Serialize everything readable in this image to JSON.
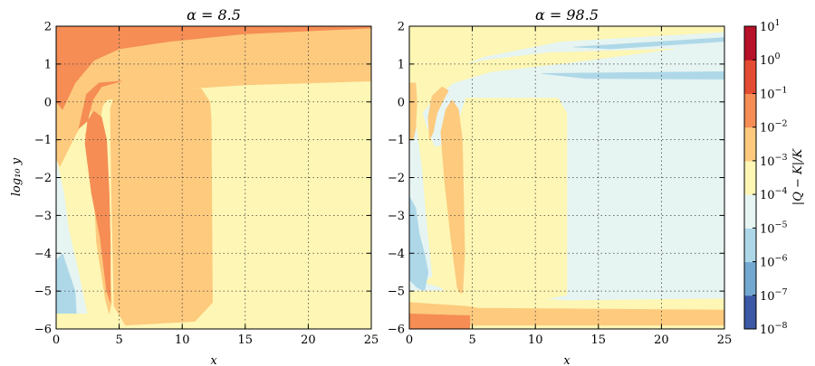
{
  "chart_data": [
    {
      "type": "heatmap",
      "title": "α = 8.5",
      "xlabel": "x",
      "ylabel": "log₁₀ y",
      "xlim": [
        0,
        25
      ],
      "ylim": [
        -6,
        2
      ],
      "xticks": [
        "0",
        "5",
        "10",
        "15",
        "20",
        "25"
      ],
      "yticks": [
        "−6",
        "−5",
        "−4",
        "−3",
        "−2",
        "−1",
        "0",
        "1",
        "2"
      ],
      "grid": true,
      "background_level": "1e-4 to 1e-3",
      "regions": [
        {
          "level": "1e-3 to 1e-2",
          "polygon": [
            [
              0.0,
              2.0
            ],
            [
              25.0,
              2.0
            ],
            [
              25.0,
              0.55
            ],
            [
              15.0,
              0.45
            ],
            [
              8.0,
              0.3
            ],
            [
              4.0,
              0.05
            ],
            [
              2.5,
              -0.3
            ],
            [
              1.5,
              -0.9
            ],
            [
              0.3,
              -1.7
            ],
            [
              0.0,
              -1.5
            ]
          ]
        },
        {
          "level": "1e-2 to 1e-1",
          "polygon": [
            [
              0.0,
              2.0
            ],
            [
              25.0,
              2.0
            ],
            [
              25.0,
              1.95
            ],
            [
              15.0,
              1.8
            ],
            [
              9.0,
              1.6
            ],
            [
              5.0,
              1.4
            ],
            [
              3.0,
              1.1
            ],
            [
              1.5,
              0.5
            ],
            [
              0.5,
              -0.2
            ],
            [
              0.0,
              0.0
            ]
          ]
        },
        {
          "level": "1e-3 to 1e-2",
          "polygon": [
            [
              2.3,
              -0.9
            ],
            [
              2.8,
              -0.25
            ],
            [
              3.6,
              0.25
            ],
            [
              4.3,
              0.5
            ],
            [
              5.2,
              0.6
            ],
            [
              4.5,
              0.3
            ],
            [
              3.7,
              -0.1
            ],
            [
              3.2,
              -0.9
            ],
            [
              3.0,
              -2.2
            ],
            [
              3.2,
              -3.7
            ],
            [
              3.9,
              -5.2
            ],
            [
              4.2,
              -5.6
            ],
            [
              4.4,
              -5.3
            ],
            [
              4.2,
              -3.9
            ],
            [
              4.0,
              -2.2
            ],
            [
              3.4,
              -1.3
            ]
          ]
        },
        {
          "level": "1e-3 to 1e-2",
          "polygon": [
            [
              4.3,
              -0.2
            ],
            [
              4.7,
              0.3
            ],
            [
              5.3,
              0.35
            ],
            [
              11.5,
              0.35
            ],
            [
              12.2,
              0.0
            ],
            [
              12.3,
              -0.5
            ],
            [
              12.4,
              -5.3
            ],
            [
              11.0,
              -5.8
            ],
            [
              5.5,
              -5.9
            ],
            [
              4.6,
              -5.4
            ],
            [
              4.4,
              -2.5
            ]
          ]
        },
        {
          "level": "1e-2 to 1e-1",
          "polygon": [
            [
              2.3,
              -1.1
            ],
            [
              2.5,
              -0.5
            ],
            [
              3.0,
              -0.25
            ],
            [
              3.6,
              -0.4
            ],
            [
              4.0,
              -1.0
            ],
            [
              4.2,
              -2.4
            ],
            [
              4.3,
              -3.8
            ],
            [
              4.3,
              -5.3
            ],
            [
              4.0,
              -5.0
            ],
            [
              3.5,
              -3.6
            ],
            [
              2.8,
              -2.4
            ]
          ]
        },
        {
          "level": "1e-2 to 1e-1",
          "polygon": [
            [
              1.8,
              -0.7
            ],
            [
              2.4,
              0.2
            ],
            [
              3.4,
              0.5
            ],
            [
              5.2,
              0.55
            ],
            [
              3.6,
              0.4
            ],
            [
              2.9,
              0.05
            ],
            [
              2.5,
              -0.5
            ]
          ]
        },
        {
          "level": "1e-5 to 1e-4",
          "polygon": [
            [
              0.0,
              -1.5
            ],
            [
              0.6,
              -2.4
            ],
            [
              1.0,
              -3.4
            ],
            [
              1.7,
              -4.4
            ],
            [
              2.2,
              -5.2
            ],
            [
              2.6,
              -5.8
            ],
            [
              3.6,
              -6.0
            ],
            [
              0.0,
              -6.0
            ]
          ]
        },
        {
          "level": "1e-6 to 1e-5",
          "polygon": [
            [
              0.0,
              -4.2
            ],
            [
              0.5,
              -4.0
            ],
            [
              1.0,
              -4.5
            ],
            [
              1.5,
              -5.0
            ],
            [
              1.6,
              -5.6
            ],
            [
              0.8,
              -5.8
            ],
            [
              0.0,
              -5.8
            ]
          ]
        },
        {
          "level": "1e-4 to 1e-3",
          "polygon": [
            [
              0.0,
              -5.6
            ],
            [
              3.4,
              -5.6
            ],
            [
              3.8,
              -6.0
            ],
            [
              0.0,
              -6.0
            ]
          ]
        }
      ]
    },
    {
      "type": "heatmap",
      "title": "α = 98.5",
      "xlabel": "x",
      "ylabel": "",
      "xlim": [
        0,
        25
      ],
      "ylim": [
        -6,
        2
      ],
      "xticks": [
        "0",
        "5",
        "10",
        "15",
        "20",
        "25"
      ],
      "yticks": [
        "−6",
        "−5",
        "−4",
        "−3",
        "−2",
        "−1",
        "0",
        "1",
        "2"
      ],
      "grid": true,
      "background_level": "1e-5 to 1e-4",
      "regions": [
        {
          "level": "1e-4 to 1e-3",
          "polygon": [
            [
              0.0,
              2.0
            ],
            [
              25.0,
              2.0
            ],
            [
              25.0,
              1.85
            ],
            [
              12.0,
              1.6
            ],
            [
              6.0,
              1.2
            ],
            [
              3.0,
              0.8
            ],
            [
              1.5,
              0.3
            ],
            [
              0.0,
              -0.4
            ]
          ]
        },
        {
          "level": "1e-4 to 1e-3",
          "polygon": [
            [
              0.0,
              0.3
            ],
            [
              1.0,
              0.2
            ],
            [
              1.6,
              0.4
            ],
            [
              3.2,
              0.9
            ],
            [
              6.0,
              1.1
            ],
            [
              11.0,
              1.3
            ],
            [
              21.0,
              1.4
            ],
            [
              13.0,
              1.05
            ],
            [
              6.5,
              0.8
            ],
            [
              3.5,
              0.5
            ],
            [
              2.0,
              0.1
            ],
            [
              1.0,
              -0.3
            ],
            [
              0.0,
              -0.6
            ]
          ]
        },
        {
          "level": "1e-4 to 1e-3",
          "polygon": [
            [
              0.0,
              0.2
            ],
            [
              0.8,
              0.0
            ],
            [
              1.3,
              -0.6
            ],
            [
              2.0,
              -1.2
            ],
            [
              3.2,
              -1.1
            ],
            [
              3.8,
              -0.6
            ],
            [
              4.5,
              0.1
            ],
            [
              11.8,
              0.1
            ],
            [
              12.5,
              -0.3
            ],
            [
              12.5,
              -5.1
            ],
            [
              11.0,
              -5.2
            ],
            [
              5.0,
              -5.2
            ],
            [
              4.5,
              -5.4
            ],
            [
              3.8,
              -5.3
            ],
            [
              2.5,
              -4.9
            ],
            [
              1.5,
              -4.8
            ],
            [
              0.6,
              -4.6
            ],
            [
              0.0,
              -4.6
            ]
          ]
        },
        {
          "level": "1e-5 to 1e-4",
          "polygon": [
            [
              0.2,
              0.0
            ],
            [
              0.6,
              -0.8
            ],
            [
              1.0,
              -1.8
            ],
            [
              1.3,
              -3.0
            ],
            [
              1.6,
              -4.0
            ],
            [
              1.8,
              -4.6
            ],
            [
              1.4,
              -4.7
            ],
            [
              0.7,
              -4.5
            ],
            [
              0.2,
              -4.0
            ],
            [
              0.0,
              -3.0
            ],
            [
              0.0,
              -0.3
            ]
          ]
        },
        {
          "level": "1e-3 to 1e-2",
          "polygon": [
            [
              2.5,
              -0.8
            ],
            [
              2.9,
              -0.2
            ],
            [
              3.4,
              0.05
            ],
            [
              3.9,
              -0.2
            ],
            [
              4.2,
              -1.0
            ],
            [
              4.3,
              -2.5
            ],
            [
              4.4,
              -4.0
            ],
            [
              4.2,
              -5.2
            ],
            [
              3.8,
              -4.9
            ],
            [
              3.3,
              -3.6
            ],
            [
              2.8,
              -2.1
            ]
          ]
        },
        {
          "level": "1e-3 to 1e-2",
          "polygon": [
            [
              1.5,
              -0.4
            ],
            [
              1.8,
              0.15
            ],
            [
              2.6,
              0.4
            ],
            [
              3.1,
              0.3
            ],
            [
              2.7,
              0.05
            ],
            [
              2.2,
              -0.3
            ],
            [
              1.9,
              -0.8
            ],
            [
              1.6,
              -1.0
            ]
          ]
        },
        {
          "level": "1e-3 to 1e-2",
          "polygon": [
            [
              0.0,
              0.5
            ],
            [
              0.5,
              0.5
            ],
            [
              0.6,
              0.0
            ],
            [
              0.5,
              -0.7
            ],
            [
              0.3,
              -1.0
            ],
            [
              0.0,
              -1.0
            ]
          ]
        },
        {
          "level": "1e-6 to 1e-5",
          "polygon": [
            [
              0.0,
              -2.5
            ],
            [
              0.5,
              -2.8
            ],
            [
              0.8,
              -3.5
            ],
            [
              1.2,
              -4.0
            ],
            [
              1.5,
              -4.5
            ],
            [
              1.2,
              -5.0
            ],
            [
              0.6,
              -4.9
            ],
            [
              0.0,
              -4.7
            ]
          ]
        },
        {
          "level": "1e-6 to 1e-5",
          "polygon": [
            [
              10.5,
              0.75
            ],
            [
              25.0,
              0.8
            ],
            [
              25.0,
              0.6
            ],
            [
              14.0,
              0.62
            ]
          ]
        },
        {
          "level": "1e-6 to 1e-5",
          "polygon": [
            [
              13.0,
              1.45
            ],
            [
              25.0,
              1.7
            ],
            [
              25.0,
              1.6
            ],
            [
              16.0,
              1.4
            ]
          ]
        },
        {
          "level": "1e-4 to 1e-3",
          "polygon": [
            [
              0.0,
              -5.0
            ],
            [
              3.0,
              -5.0
            ],
            [
              5.0,
              -5.1
            ],
            [
              12.5,
              -5.25
            ],
            [
              25.0,
              -5.2
            ],
            [
              25.0,
              -6.0
            ],
            [
              0.0,
              -6.0
            ]
          ]
        },
        {
          "level": "1e-3 to 1e-2",
          "polygon": [
            [
              0.0,
              -5.3
            ],
            [
              4.5,
              -5.4
            ],
            [
              5.5,
              -5.45
            ],
            [
              25.0,
              -5.5
            ],
            [
              25.0,
              -5.9
            ],
            [
              0.0,
              -5.9
            ]
          ]
        },
        {
          "level": "1e-2 to 1e-1",
          "polygon": [
            [
              0.0,
              -5.6
            ],
            [
              4.8,
              -5.65
            ],
            [
              4.8,
              -6.0
            ],
            [
              0.0,
              -6.0
            ]
          ]
        }
      ]
    }
  ],
  "colorbar": {
    "label": "|Q − K|/K",
    "bands": [
      {
        "range": "1e-8 to 1e-7",
        "color": "#3c59a6"
      },
      {
        "range": "1e-7 to 1e-6",
        "color": "#73a8d0"
      },
      {
        "range": "1e-6 to 1e-5",
        "color": "#aed8e8"
      },
      {
        "range": "1e-5 to 1e-4",
        "color": "#e6f4f2"
      },
      {
        "range": "1e-4 to 1e-3",
        "color": "#fdf6b4"
      },
      {
        "range": "1e-3 to 1e-2",
        "color": "#fdca7e"
      },
      {
        "range": "1e-2 to 1e-1",
        "color": "#f58d55"
      },
      {
        "range": "1e-1 to 1e0",
        "color": "#e34c32"
      },
      {
        "range": "1e0 to 1e1",
        "color": "#b8112a"
      }
    ],
    "ticks": [
      {
        "base": "10",
        "exp": "−8"
      },
      {
        "base": "10",
        "exp": "−7"
      },
      {
        "base": "10",
        "exp": "−6"
      },
      {
        "base": "10",
        "exp": "−5"
      },
      {
        "base": "10",
        "exp": "−4"
      },
      {
        "base": "10",
        "exp": "−3"
      },
      {
        "base": "10",
        "exp": "−2"
      },
      {
        "base": "10",
        "exp": "−1"
      },
      {
        "base": "10",
        "exp": "0"
      },
      {
        "base": "10",
        "exp": "1"
      }
    ]
  }
}
